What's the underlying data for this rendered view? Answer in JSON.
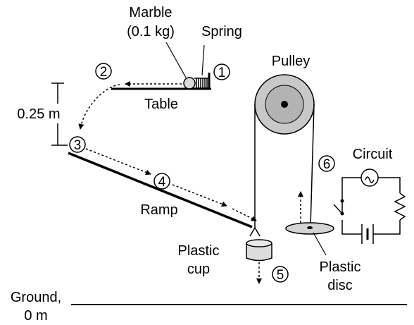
{
  "labels": {
    "marble_line1": "Marble",
    "marble_line2": "(0.1 kg)",
    "spring": "Spring",
    "table": "Table",
    "pulley": "Pulley",
    "height": "0.25 m",
    "ramp": "Ramp",
    "circuit": "Circuit",
    "cup_line1": "Plastic",
    "cup_line2": "cup",
    "disc_line1": "Plastic",
    "disc_line2": "disc",
    "ground_line1": "Ground,",
    "ground_line2": "0 m"
  },
  "steps": [
    "1",
    "2",
    "3",
    "4",
    "5",
    "6"
  ],
  "colors": {
    "pulley_outer": "#c8c8c8",
    "pulley_inner": "#b3b3b3",
    "disc": "#d4d4d4",
    "cup": "#dcdcdc",
    "marble": "#d9d9d9"
  }
}
